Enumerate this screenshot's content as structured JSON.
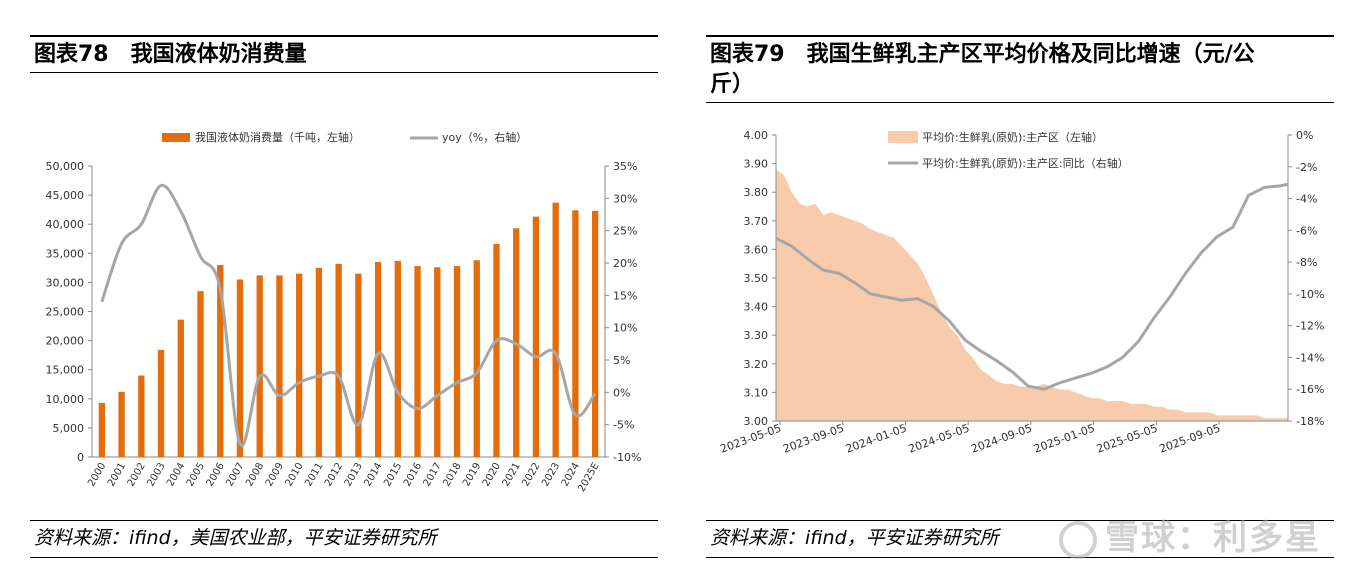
{
  "left": {
    "title": "图表78　我国液体奶消费量",
    "source": "资料来源：ifind，美国农业部，平安证券研究所"
  },
  "right": {
    "title_line1": "图表79　我国生鲜乳主产区平均价格及同比增速（元/公",
    "title_line2": "斤）",
    "source": "资料来源：ifind，平安证券研究所"
  },
  "watermark": "雪球：利多星",
  "chart_data": [
    {
      "type": "bar",
      "title": "我国液体奶消费量",
      "categories": [
        "2000",
        "2001",
        "2002",
        "2003",
        "2004",
        "2005",
        "2006",
        "2007",
        "2008",
        "2009",
        "2010",
        "2011",
        "2012",
        "2013",
        "2014",
        "2015",
        "2016",
        "2017",
        "2018",
        "2019",
        "2020",
        "2021",
        "2022",
        "2023",
        "2024",
        "2025E"
      ],
      "series": [
        {
          "name": "我国液体奶消费量（千吨，左轴）",
          "axis": "left",
          "type": "bar",
          "color": "#E46C0A",
          "values": [
            9300,
            11200,
            14000,
            18400,
            23600,
            28500,
            33000,
            30500,
            31200,
            31200,
            31500,
            32500,
            33200,
            31500,
            33500,
            33700,
            32800,
            32600,
            32800,
            33800,
            36600,
            39300,
            41300,
            43700,
            42400,
            42300
          ]
        },
        {
          "name": "yoy（%，右轴）",
          "axis": "right",
          "type": "line",
          "color": "#A6A6A6",
          "values": [
            14,
            23,
            26,
            32,
            28,
            21,
            16,
            -8,
            2.5,
            -0.5,
            1.5,
            2.5,
            2.5,
            -5,
            6,
            0,
            -2.5,
            -0.5,
            1.5,
            3,
            8,
            7.5,
            5.5,
            6,
            -3.5,
            -0.2
          ]
        }
      ],
      "y_left": {
        "min": 0,
        "max": 50000,
        "ticks": [
          "0",
          "5,000",
          "10,000",
          "15,000",
          "20,000",
          "25,000",
          "30,000",
          "35,000",
          "40,000",
          "45,000",
          "50,000"
        ]
      },
      "y_right": {
        "min": -10,
        "max": 35,
        "ticks": [
          "-10%",
          "-5%",
          "0%",
          "5%",
          "10%",
          "15%",
          "20%",
          "25%",
          "30%",
          "35%"
        ]
      },
      "legend": "top"
    },
    {
      "type": "area",
      "title": "我国生鲜乳主产区平均价格及同比增速（元/公斤）",
      "x_ticks": [
        "2023-05-05",
        "2023-09-05",
        "2024-01-05",
        "2024-05-05",
        "2024-09-05",
        "2025-01-05",
        "2025-05-05",
        "2025-09-05"
      ],
      "series": [
        {
          "name": "平均价:生鲜乳(原奶):主产区（左轴）",
          "axis": "left",
          "type": "area",
          "color": "#F8CBAD",
          "x": [
            0,
            2,
            4,
            6,
            8,
            10,
            12,
            14,
            16,
            18,
            20,
            22,
            24,
            26,
            28,
            30,
            32,
            34,
            36,
            38,
            40,
            42,
            44,
            46,
            48,
            50,
            52,
            54,
            56,
            58,
            60,
            62,
            64,
            66,
            68,
            70,
            72,
            74,
            76,
            78,
            80,
            82,
            84,
            86,
            88,
            90,
            92,
            94,
            96,
            98,
            100,
            102,
            104,
            106,
            108,
            110,
            112,
            114,
            116,
            118,
            120,
            122,
            124,
            126,
            128,
            130
          ],
          "values": [
            3.88,
            3.86,
            3.8,
            3.76,
            3.75,
            3.76,
            3.72,
            3.73,
            3.72,
            3.71,
            3.7,
            3.69,
            3.67,
            3.66,
            3.65,
            3.64,
            3.61,
            3.58,
            3.55,
            3.5,
            3.44,
            3.38,
            3.33,
            3.3,
            3.25,
            3.22,
            3.18,
            3.16,
            3.14,
            3.13,
            3.13,
            3.12,
            3.12,
            3.12,
            3.13,
            3.12,
            3.11,
            3.11,
            3.1,
            3.09,
            3.08,
            3.08,
            3.07,
            3.07,
            3.07,
            3.06,
            3.06,
            3.06,
            3.05,
            3.05,
            3.04,
            3.04,
            3.03,
            3.03,
            3.03,
            3.03,
            3.02,
            3.02,
            3.02,
            3.02,
            3.02,
            3.02,
            3.01,
            3.01,
            3.01,
            3.01
          ]
        },
        {
          "name": "平均价:生鲜乳(原奶):主产区:同比（右轴）",
          "axis": "right",
          "type": "line",
          "color": "#A6A6A6",
          "x": [
            0,
            4,
            8,
            12,
            16,
            20,
            24,
            28,
            32,
            36,
            40,
            44,
            48,
            52,
            56,
            60,
            64,
            68,
            72,
            76,
            80,
            84,
            88,
            92,
            96,
            100,
            104,
            108,
            112,
            116,
            120,
            124,
            128,
            130
          ],
          "values": [
            -6.5,
            -7.0,
            -7.8,
            -8.5,
            -8.7,
            -9.3,
            -10.0,
            -10.2,
            -10.4,
            -10.3,
            -10.8,
            -11.7,
            -12.9,
            -13.6,
            -14.2,
            -14.9,
            -15.8,
            -16.0,
            -15.6,
            -15.3,
            -15.0,
            -14.6,
            -14.0,
            -13.0,
            -11.5,
            -10.2,
            -8.7,
            -7.4,
            -6.4,
            -5.8,
            -3.8,
            -3.3,
            -3.2,
            -3.1
          ]
        }
      ],
      "y_left": {
        "min": 3.0,
        "max": 4.0,
        "ticks": [
          "3.00",
          "3.10",
          "3.20",
          "3.30",
          "3.40",
          "3.50",
          "3.60",
          "3.70",
          "3.80",
          "3.90",
          "4.00"
        ]
      },
      "y_right": {
        "min": -18,
        "max": 0,
        "ticks": [
          "-18%",
          "-16%",
          "-14%",
          "-12%",
          "-10%",
          "-8%",
          "-6%",
          "-4%",
          "-2%",
          "0%"
        ]
      },
      "legend": "top-left"
    }
  ]
}
